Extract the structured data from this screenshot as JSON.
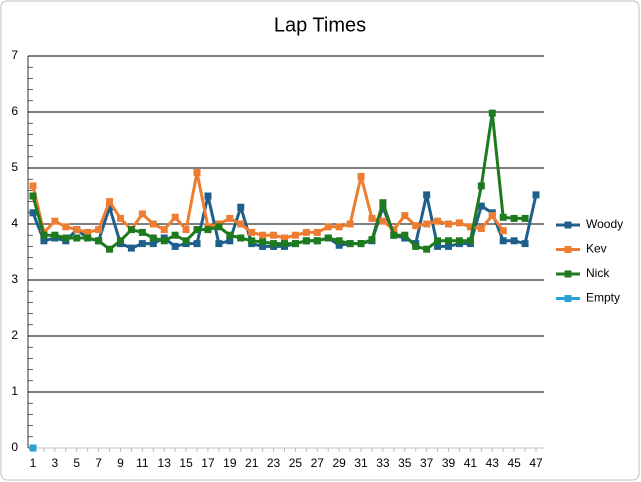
{
  "chart_data": {
    "type": "line",
    "title": "Lap Times",
    "categories": [
      1,
      null,
      3,
      null,
      5,
      null,
      7,
      null,
      9,
      null,
      11,
      null,
      13,
      null,
      15,
      null,
      17,
      null,
      19,
      null,
      21,
      null,
      23,
      null,
      25,
      null,
      27,
      null,
      29,
      null,
      31,
      null,
      33,
      null,
      35,
      null,
      37,
      null,
      39,
      null,
      41,
      null,
      43,
      null,
      45,
      null,
      47
    ],
    "series": [
      {
        "name": "Woody",
        "color": "#1f5f8b",
        "values": [
          4.2,
          3.7,
          3.75,
          3.7,
          3.9,
          3.75,
          3.7,
          4.3,
          3.65,
          3.57,
          3.65,
          3.65,
          3.75,
          3.6,
          3.65,
          3.65,
          4.5,
          3.65,
          3.7,
          4.3,
          3.65,
          3.6,
          3.6,
          3.6,
          3.65,
          3.7,
          3.7,
          3.75,
          3.62,
          3.65,
          3.65,
          3.7,
          4.3,
          3.8,
          3.75,
          3.65,
          4.52,
          3.6,
          3.6,
          3.65,
          3.65,
          4.32,
          4.2,
          3.7,
          3.7,
          3.65,
          4.52
        ]
      },
      {
        "name": "Kev",
        "color": "#ed7d31",
        "values": [
          4.68,
          3.85,
          4.05,
          3.95,
          3.9,
          3.85,
          3.9,
          4.4,
          4.1,
          3.9,
          4.18,
          4.0,
          3.9,
          4.12,
          3.9,
          4.92,
          3.95,
          4.0,
          4.1,
          4.0,
          3.85,
          3.8,
          3.8,
          3.75,
          3.8,
          3.85,
          3.85,
          3.95,
          3.95,
          4.0,
          4.85,
          4.1,
          4.05,
          3.9,
          4.15,
          3.97,
          4.0,
          4.05,
          4.0,
          4.02,
          3.95,
          3.92,
          4.15,
          3.88,
          null,
          null,
          null
        ]
      },
      {
        "name": "Nick",
        "color": "#1e7a1e",
        "values": [
          4.5,
          3.8,
          3.8,
          3.75,
          3.75,
          3.75,
          3.7,
          3.55,
          3.7,
          3.9,
          3.85,
          3.75,
          3.7,
          3.8,
          3.7,
          3.9,
          3.9,
          3.95,
          3.8,
          3.75,
          3.7,
          3.68,
          3.65,
          3.65,
          3.65,
          3.7,
          3.7,
          3.75,
          3.7,
          3.65,
          3.65,
          3.72,
          4.38,
          3.8,
          3.8,
          3.6,
          3.55,
          3.7,
          3.7,
          3.7,
          3.7,
          4.68,
          5.98,
          4.12,
          4.1,
          4.1,
          null
        ]
      },
      {
        "name": "Empty",
        "color": "#2aa0d8",
        "values": [
          0,
          null,
          null,
          null,
          null,
          null,
          null,
          null,
          null,
          null,
          null,
          null,
          null,
          null,
          null,
          null,
          null,
          null,
          null,
          null,
          null,
          null,
          null,
          null,
          null,
          null,
          null,
          null,
          null,
          null,
          null,
          null,
          null,
          null,
          null,
          null,
          null,
          null,
          null,
          null,
          null,
          null,
          null,
          null,
          null,
          null,
          null
        ]
      }
    ],
    "ylim": [
      0,
      7
    ],
    "yticks": [
      0,
      1,
      2,
      3,
      4,
      5,
      6,
      7
    ],
    "grid": true,
    "legend": "right"
  }
}
